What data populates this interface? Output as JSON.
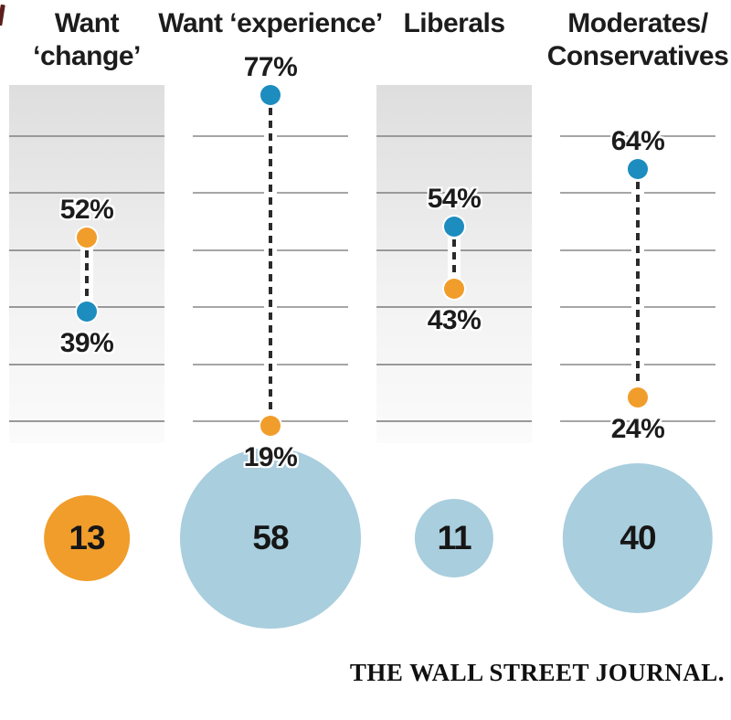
{
  "chart_data": {
    "type": "dumbbell+bubble",
    "title": "",
    "axis": {
      "unit": "%",
      "grid": true,
      "gridline_percents": [
        70,
        60,
        50,
        40,
        30,
        20
      ],
      "top_percent": 78.7,
      "bottom_percent": 16.0
    },
    "columns": [
      {
        "id": "want-change",
        "title_line1": "Want",
        "title_line2": "‘change’",
        "shaded": true,
        "high": {
          "color": "orange",
          "value": 52,
          "label": "52%"
        },
        "low": {
          "color": "blue",
          "value": 39,
          "label": "39%"
        },
        "bubble": {
          "value": 13,
          "label": "13",
          "color": "orange"
        }
      },
      {
        "id": "want-experience",
        "title_line1": "Want ‘experience’",
        "title_line2": "",
        "shaded": false,
        "high": {
          "color": "blue",
          "value": 77,
          "label": "77%"
        },
        "low": {
          "color": "orange",
          "value": 19,
          "label": "19%"
        },
        "bubble": {
          "value": 58,
          "label": "58",
          "color": "lightblue"
        }
      },
      {
        "id": "liberals",
        "title_line1": "Liberals",
        "title_line2": "",
        "shaded": true,
        "high": {
          "color": "blue",
          "value": 54,
          "label": "54%"
        },
        "low": {
          "color": "orange",
          "value": 43,
          "label": "43%"
        },
        "bubble": {
          "value": 11,
          "label": "11",
          "color": "lightblue"
        }
      },
      {
        "id": "moderates-conservatives",
        "title_line1": "Moderates/",
        "title_line2": "Conservatives",
        "shaded": false,
        "high": {
          "color": "blue",
          "value": 64,
          "label": "64%"
        },
        "low": {
          "color": "orange",
          "value": 24,
          "label": "24%"
        },
        "bubble": {
          "value": 40,
          "label": "40",
          "color": "lightblue"
        }
      }
    ],
    "colors": {
      "orange": "#f19d2b",
      "blue": "#1d8cbf",
      "light_blue": "#a9cede",
      "gridline": "#a6a6a6",
      "text": "#1c1c1c",
      "edge_mark": "#5e1e1e"
    }
  },
  "footer": {
    "brand": "THE WALL STREET JOURNAL."
  }
}
